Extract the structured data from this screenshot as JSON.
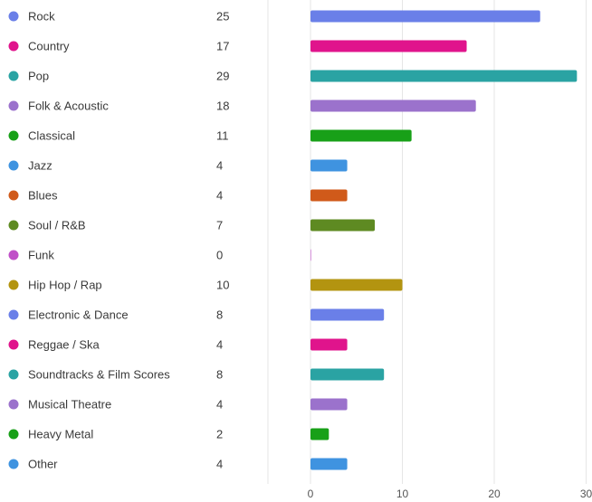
{
  "chart_data": {
    "type": "bar",
    "orientation": "horizontal",
    "categories": [
      "Rock",
      "Country",
      "Pop",
      "Folk & Acoustic",
      "Classical",
      "Jazz",
      "Blues",
      "Soul / R&B",
      "Funk",
      "Hip Hop / Rap",
      "Electronic & Dance",
      "Reggae / Ska",
      "Soundtracks & Film Scores",
      "Musical Theatre",
      "Heavy Metal",
      "Other"
    ],
    "values": [
      25,
      17,
      29,
      18,
      11,
      4,
      4,
      7,
      0,
      10,
      8,
      4,
      8,
      4,
      2,
      4
    ],
    "colors": [
      "#6a7fe8",
      "#e0148c",
      "#2aa3a3",
      "#9b72cc",
      "#18a018",
      "#3f93e0",
      "#d05a1a",
      "#5e8a22",
      "#c050c8",
      "#b39410",
      "#6a7fe8",
      "#e0148c",
      "#2aa3a3",
      "#9b72cc",
      "#18a018",
      "#3f93e0"
    ],
    "xlim": [
      0,
      30
    ],
    "xticks": [
      0,
      10,
      20,
      30
    ],
    "grid": true,
    "legend": "left",
    "title": "",
    "xlabel": "",
    "ylabel": ""
  }
}
